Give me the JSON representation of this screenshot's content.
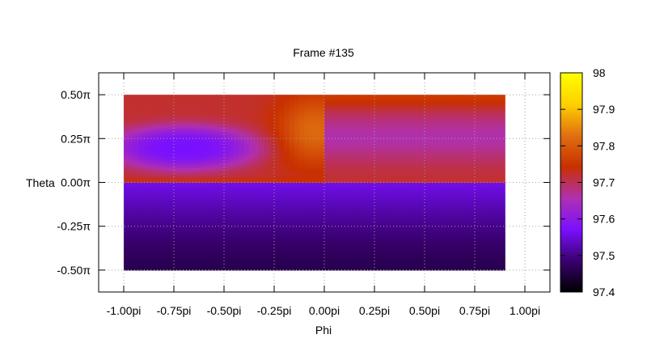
{
  "chart_data": {
    "type": "heatmap",
    "title": "Frame #135",
    "xlabel": "Phi",
    "ylabel": "Theta",
    "xlim": [
      -1.125,
      1.125
    ],
    "ylim": [
      -0.625,
      0.625
    ],
    "x_ticks": [
      {
        "value": -1.0,
        "label": "-1.00pi"
      },
      {
        "value": -0.75,
        "label": "-0.75pi"
      },
      {
        "value": -0.5,
        "label": "-0.50pi"
      },
      {
        "value": -0.25,
        "label": "-0.25pi"
      },
      {
        "value": 0.0,
        "label": "0.00pi"
      },
      {
        "value": 0.25,
        "label": "0.25pi"
      },
      {
        "value": 0.5,
        "label": "0.50pi"
      },
      {
        "value": 0.75,
        "label": "0.75pi"
      },
      {
        "value": 1.0,
        "label": "1.00pi"
      }
    ],
    "y_ticks": [
      {
        "value": 0.5,
        "label": "0.50π"
      },
      {
        "value": 0.25,
        "label": "0.25π"
      },
      {
        "value": 0.0,
        "label": "0.00π"
      },
      {
        "value": -0.25,
        "label": "-0.25π"
      },
      {
        "value": -0.5,
        "label": "-0.50π"
      }
    ],
    "grid": true,
    "colorbar": {
      "range": [
        97.4,
        98.0
      ],
      "ticks": [
        "98",
        "97.9",
        "97.8",
        "97.7",
        "97.6",
        "97.5",
        "97.4"
      ],
      "palette": [
        "#000000",
        "#3a0070",
        "#7a10ff",
        "#b030b0",
        "#c83000",
        "#e07010",
        "#ffd000",
        "#ffff00"
      ]
    },
    "data_extent": {
      "phi": [
        -1.0,
        0.9
      ],
      "theta": [
        -0.5,
        0.5
      ]
    },
    "regions": [
      {
        "phi": [
          -1.0,
          0.0
        ],
        "theta": [
          0.0,
          0.5
        ],
        "description_values": {
          "background": 97.72,
          "blob_center": [
            -0.7,
            0.2
          ],
          "blob_value": 97.57,
          "bright_edge_near_phi_0": 97.82
        }
      },
      {
        "phi": [
          0.0,
          0.9
        ],
        "theta": [
          0.0,
          0.5
        ],
        "description_values": {
          "top_edge": 97.76,
          "middle_band": 97.66,
          "bottom_edge": 97.72
        }
      },
      {
        "phi": [
          -1.0,
          0.9
        ],
        "theta": [
          -0.5,
          0.0
        ],
        "description_values": {
          "top_edge": 97.56,
          "bottom_edge": 97.46
        }
      }
    ]
  }
}
